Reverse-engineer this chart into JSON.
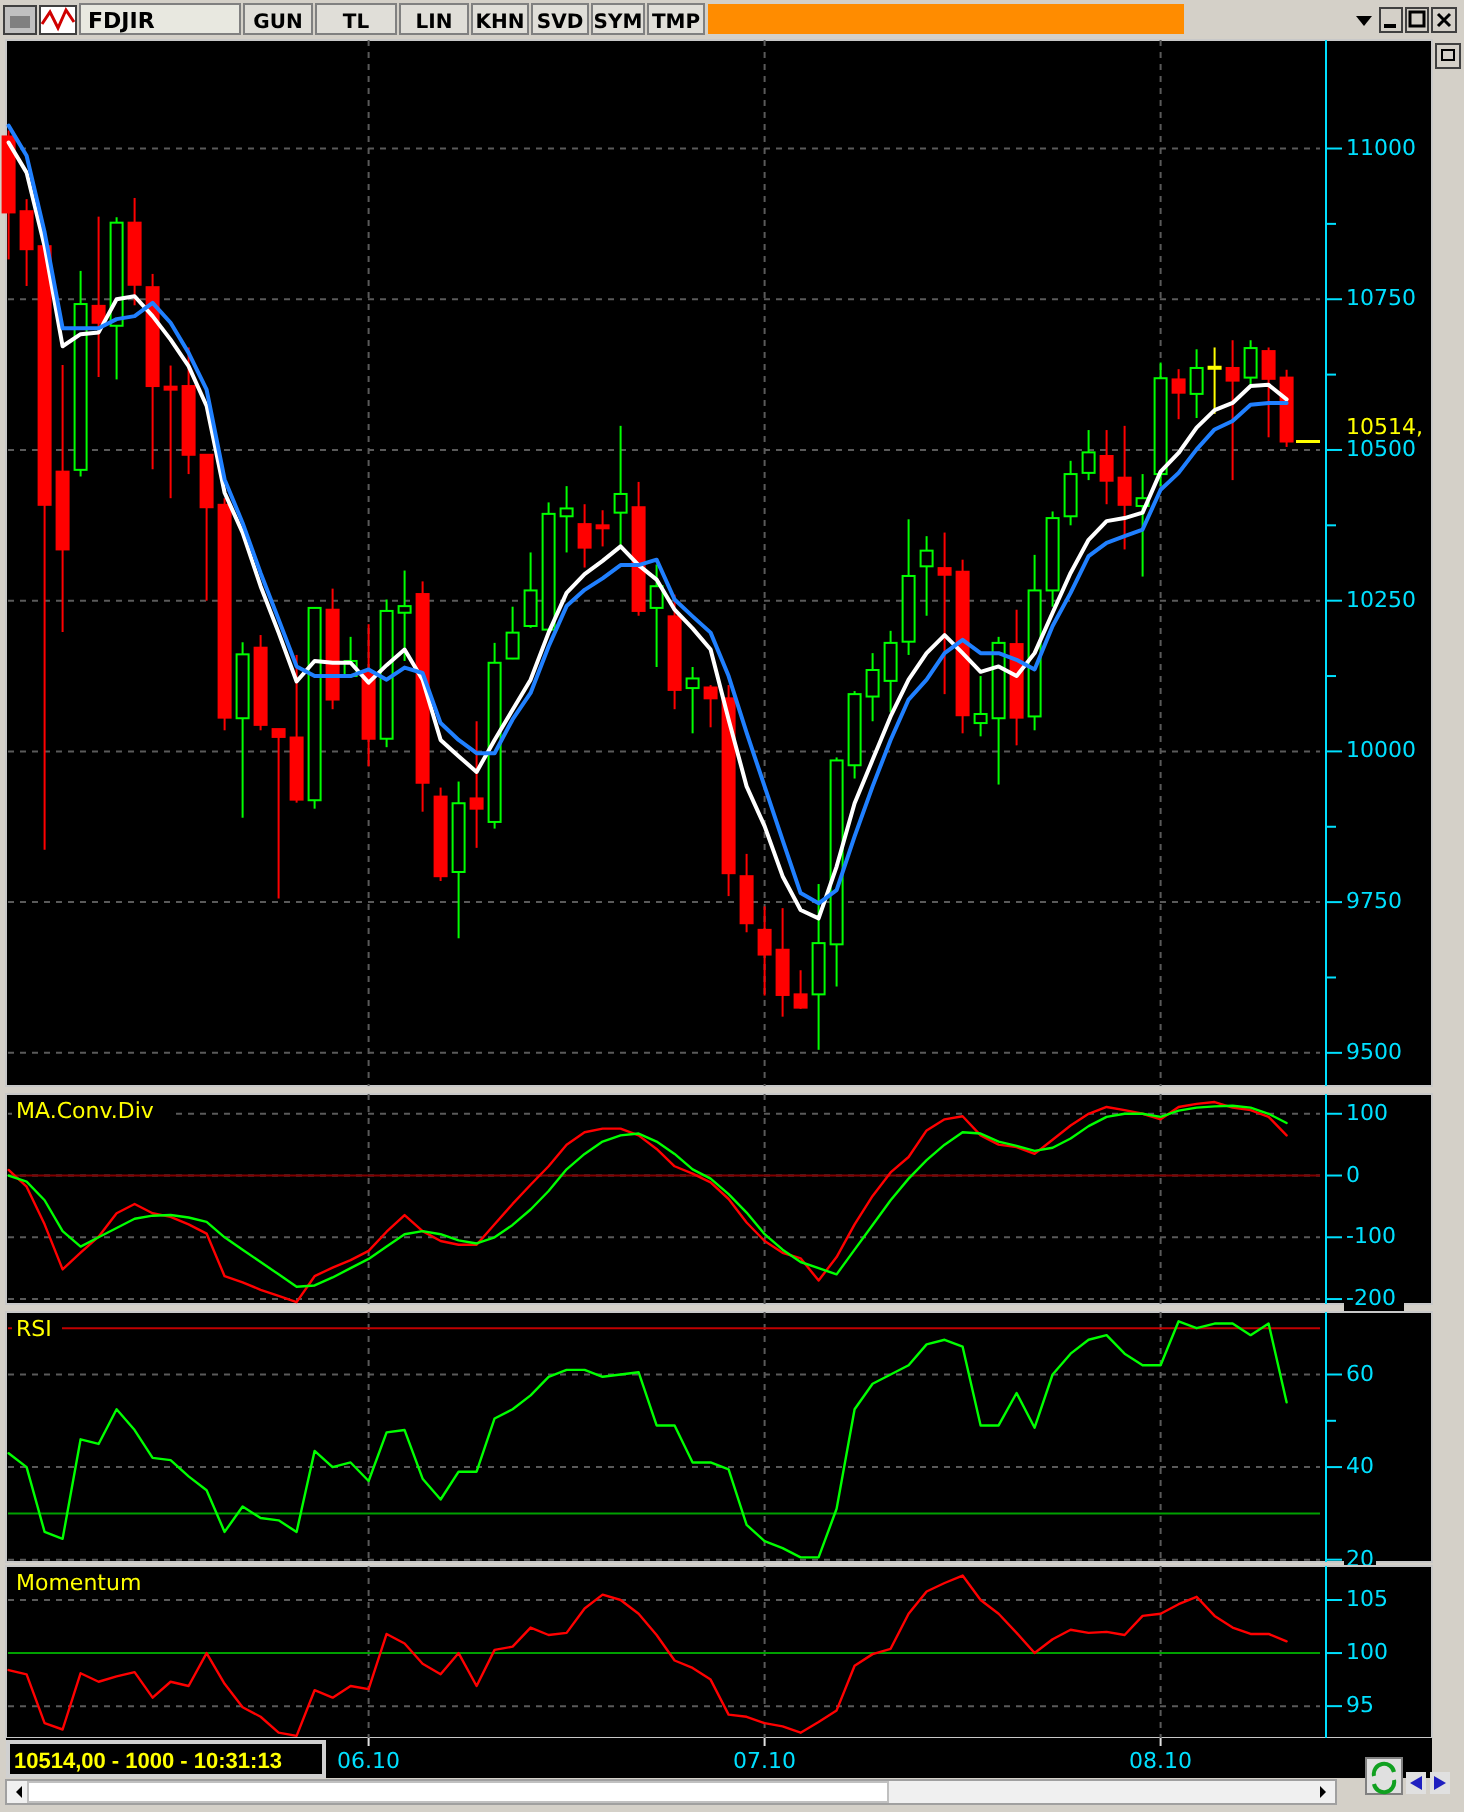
{
  "chart_data": [
    {
      "type": "candlestick",
      "title": "FDJIR",
      "annotations": [
        "GUN",
        "TL",
        "LIN",
        "KHN",
        "SVD",
        "SYM",
        "TMP"
      ],
      "categories": [
        null,
        null,
        null,
        null,
        null,
        null,
        null,
        null,
        null,
        null,
        null,
        null,
        null,
        null,
        null,
        null,
        null,
        null,
        null,
        null,
        "06.10",
        null,
        null,
        null,
        null,
        null,
        null,
        null,
        null,
        null,
        null,
        null,
        null,
        null,
        null,
        null,
        null,
        null,
        null,
        null,
        null,
        null,
        "07.10",
        null,
        null,
        null,
        null,
        null,
        null,
        null,
        null,
        null,
        null,
        null,
        null,
        null,
        null,
        null,
        null,
        null,
        null,
        null,
        null,
        null,
        "08.10",
        null,
        null,
        null,
        null,
        null,
        null,
        null
      ],
      "ohlc": [
        [
          11020,
          11030,
          10816,
          10894
        ],
        [
          10896,
          10916,
          10772,
          10833
        ],
        [
          10838,
          10838,
          9837,
          10409
        ],
        [
          10464,
          10641,
          10198,
          10335
        ],
        [
          10467,
          10797,
          10456,
          10742
        ],
        [
          10739,
          10887,
          10621,
          10711
        ],
        [
          10706,
          10886,
          10617,
          10877
        ],
        [
          10877,
          10918,
          10740,
          10774
        ],
        [
          10770,
          10792,
          10468,
          10606
        ],
        [
          10605,
          10640,
          10420,
          10600
        ],
        [
          10606,
          10670,
          10460,
          10492
        ],
        [
          10492,
          10492,
          10250,
          10405
        ],
        [
          10409,
          10420,
          10035,
          10056
        ],
        [
          10055,
          10181,
          9890,
          10161
        ],
        [
          10172,
          10193,
          10035,
          10044
        ],
        [
          10037,
          10037,
          9756,
          10024
        ],
        [
          10023,
          10160,
          9915,
          9920
        ],
        [
          9919,
          10238,
          9905,
          10238
        ],
        [
          10235,
          10270,
          10070,
          10086
        ],
        [
          10125,
          10190,
          10123,
          10150
        ],
        [
          10130,
          10211,
          9975,
          10021
        ],
        [
          10021,
          10252,
          10007,
          10233
        ],
        [
          10230,
          10300,
          10150,
          10241
        ],
        [
          10261,
          10282,
          9900,
          9948
        ],
        [
          9925,
          9940,
          9785,
          9793
        ],
        [
          9800,
          9950,
          9690,
          9914
        ],
        [
          9922,
          10050,
          9840,
          9905
        ],
        [
          9883,
          10180,
          9872,
          10147
        ],
        [
          10154,
          10240,
          10153,
          10197
        ],
        [
          10208,
          10330,
          10205,
          10267
        ],
        [
          10202,
          10413,
          10195,
          10394
        ],
        [
          10390,
          10440,
          10330,
          10403
        ],
        [
          10377,
          10410,
          10305,
          10338
        ],
        [
          10375,
          10400,
          10340,
          10370
        ],
        [
          10396,
          10540,
          10340,
          10427
        ],
        [
          10405,
          10447,
          10225,
          10233
        ],
        [
          10238,
          10310,
          10140,
          10274
        ],
        [
          10224,
          10260,
          10070,
          10102
        ],
        [
          10105,
          10140,
          10030,
          10121
        ],
        [
          10106,
          10110,
          10040,
          10088
        ],
        [
          10088,
          10110,
          9760,
          9798
        ],
        [
          9793,
          9830,
          9700,
          9715
        ],
        [
          9704,
          9743,
          9595,
          9663
        ],
        [
          9671,
          9740,
          9560,
          9596
        ],
        [
          9597,
          9637,
          9573,
          9575
        ],
        [
          9597,
          9780,
          9505,
          9682
        ],
        [
          9680,
          9990,
          9610,
          9985
        ],
        [
          9977,
          10100,
          9955,
          10095
        ],
        [
          10091,
          10163,
          10050,
          10135
        ],
        [
          10117,
          10200,
          10065,
          10180
        ],
        [
          10182,
          10385,
          10160,
          10291
        ],
        [
          10307,
          10357,
          10225,
          10333
        ],
        [
          10304,
          10363,
          10095,
          10293
        ],
        [
          10298,
          10318,
          10030,
          10060
        ],
        [
          10047,
          10125,
          10025,
          10062
        ],
        [
          10055,
          10190,
          9945,
          10180
        ],
        [
          10178,
          10235,
          10010,
          10056
        ],
        [
          10058,
          10326,
          10035,
          10267
        ],
        [
          10267,
          10398,
          10240,
          10387
        ],
        [
          10390,
          10482,
          10375,
          10460
        ],
        [
          10462,
          10533,
          10450,
          10496
        ],
        [
          10490,
          10533,
          10410,
          10449
        ],
        [
          10454,
          10540,
          10335,
          10409
        ],
        [
          10407,
          10460,
          10290,
          10420
        ],
        [
          10460,
          10645,
          10440,
          10619
        ],
        [
          10617,
          10634,
          10551,
          10595
        ],
        [
          10593,
          10667,
          10553,
          10636
        ],
        [
          10638,
          10670,
          10560,
          10638
        ],
        [
          10636,
          10682,
          10450,
          10615
        ],
        [
          10620,
          10682,
          10605,
          10669
        ],
        [
          10664,
          10670,
          10521,
          10618
        ],
        [
          10620,
          10633,
          10505,
          10514
        ]
      ],
      "colors": [
        "#ff0000",
        "#ff0000",
        "#ff0000",
        "#ff0000",
        "#00ff00",
        "#ff0000",
        "#00ff00",
        "#ff0000",
        "#ff0000",
        "#ff0000",
        "#ff0000",
        "#ff0000",
        "#ff0000",
        "#00ff00",
        "#ff0000",
        "#ff0000",
        "#ff0000",
        "#00ff00",
        "#ff0000",
        "#00ff00",
        "#ff0000",
        "#00ff00",
        "#00ff00",
        "#ff0000",
        "#ff0000",
        "#00ff00",
        "#ff0000",
        "#00ff00",
        "#00ff00",
        "#00ff00",
        "#00ff00",
        "#00ff00",
        "#ff0000",
        "#ff0000",
        "#00ff00",
        "#ff0000",
        "#00ff00",
        "#ff0000",
        "#00ff00",
        "#ff0000",
        "#ff0000",
        "#ff0000",
        "#ff0000",
        "#ff0000",
        "#ff0000",
        "#00ff00",
        "#00ff00",
        "#00ff00",
        "#00ff00",
        "#00ff00",
        "#00ff00",
        "#00ff00",
        "#ff0000",
        "#ff0000",
        "#00ff00",
        "#00ff00",
        "#ff0000",
        "#00ff00",
        "#00ff00",
        "#00ff00",
        "#00ff00",
        "#ff0000",
        "#ff0000",
        "#00ff00",
        "#00ff00",
        "#ff0000",
        "#00ff00",
        "#ffff00",
        "#ff0000",
        "#00ff00",
        "#ff0000",
        "#ff0000"
      ],
      "series": [
        {
          "type": "line",
          "color": "#ffffff",
          "values": [
            11010,
            10960,
            10838,
            10672,
            10692,
            10695,
            10750,
            10755,
            10722,
            10683,
            10639,
            10573,
            10429,
            10363,
            10274,
            10197,
            10116,
            10150,
            10147,
            10147,
            10114,
            10143,
            10169,
            10119,
            10019,
            9992,
            9966,
            10019,
            10069,
            10119,
            10197,
            10263,
            10294,
            10316,
            10340,
            10309,
            10285,
            10235,
            10204,
            10169,
            10053,
            9942,
            9876,
            9793,
            9737,
            9723,
            9809,
            9914,
            9986,
            10058,
            10119,
            10163,
            10193,
            10163,
            10132,
            10141,
            10125,
            10163,
            10230,
            10296,
            10351,
            10382,
            10387,
            10396,
            10464,
            10495,
            10537,
            10566,
            10578,
            10606,
            10608,
            10584
          ]
        },
        {
          "type": "line",
          "color": "#2080ff",
          "values": [
            11038,
            10988,
            10861,
            10702,
            10702,
            10702,
            10717,
            10722,
            10744,
            10711,
            10661,
            10600,
            10451,
            10379,
            10296,
            10219,
            10141,
            10125,
            10125,
            10125,
            10136,
            10119,
            10139,
            10130,
            10047,
            10019,
            9997,
            9997,
            10053,
            10097,
            10174,
            10241,
            10268,
            10287,
            10309,
            10309,
            10318,
            10252,
            10224,
            10197,
            10125,
            10031,
            9942,
            9853,
            9765,
            9748,
            9770,
            9859,
            9942,
            10019,
            10086,
            10119,
            10163,
            10185,
            10163,
            10163,
            10152,
            10136,
            10208,
            10263,
            10324,
            10346,
            10357,
            10368,
            10434,
            10462,
            10501,
            10534,
            10548,
            10575,
            10578,
            10578
          ]
        }
      ],
      "ylim": [
        9445,
        11180
      ],
      "yticks": [
        9500,
        {
          "value": 9625,
          "label": null
        },
        9750,
        {
          "value": 9875,
          "label": null
        },
        10000,
        {
          "value": 10125,
          "label": null
        },
        10250,
        {
          "value": 10375,
          "label": null
        },
        10500,
        {
          "value": 10625,
          "label": null
        },
        10750,
        {
          "value": 10875,
          "label": null
        },
        11000
      ],
      "grid": true,
      "tick_labels": "y",
      "ref_lines": [
        {
          "axis": "y",
          "value": 10514,
          "label": "10514,",
          "color": "#ffff00"
        }
      ]
    },
    {
      "type": "line",
      "title": "MA.Conv.Div",
      "categories": [
        null,
        null,
        null,
        null,
        null,
        null,
        null,
        null,
        null,
        null,
        null,
        null,
        null,
        null,
        null,
        null,
        null,
        null,
        null,
        null,
        "06.10",
        null,
        null,
        null,
        null,
        null,
        null,
        null,
        null,
        null,
        null,
        null,
        null,
        null,
        null,
        null,
        null,
        null,
        null,
        null,
        null,
        null,
        "07.10",
        null,
        null,
        null,
        null,
        null,
        null,
        null,
        null,
        null,
        null,
        null,
        null,
        null,
        null,
        null,
        null,
        null,
        null,
        null,
        null,
        null,
        "08.10",
        null,
        null,
        null,
        null,
        null,
        null,
        null
      ],
      "series": [
        {
          "color": "#ff0000",
          "values": [
            9,
            -18,
            -79,
            -152,
            -125,
            -99,
            -61,
            -46,
            -61,
            -67,
            -79,
            -94,
            -163,
            -173,
            -185,
            -195,
            -205,
            -163,
            -149,
            -137,
            -122,
            -91,
            -64,
            -90,
            -106,
            -112,
            -112,
            -79,
            -46,
            -15,
            15,
            50,
            70,
            76,
            76,
            65,
            43,
            15,
            3,
            -11,
            -38,
            -76,
            -106,
            -125,
            -134,
            -170,
            -132,
            -79,
            -33,
            5,
            30,
            73,
            91,
            96,
            65,
            50,
            46,
            35,
            58,
            81,
            100,
            111,
            106,
            100,
            91,
            111,
            116,
            119,
            110,
            106,
            95,
            65
          ]
        },
        {
          "color": "#00ff00",
          "values": [
            0,
            -10,
            -40,
            -90,
            -115,
            -100,
            -85,
            -70,
            -65,
            -64,
            -68,
            -75,
            -100,
            -120,
            -140,
            -160,
            -180,
            -178,
            -165,
            -150,
            -135,
            -115,
            -95,
            -90,
            -95,
            -105,
            -110,
            -100,
            -80,
            -55,
            -25,
            10,
            35,
            55,
            65,
            68,
            55,
            35,
            10,
            -5,
            -30,
            -60,
            -95,
            -120,
            -140,
            -150,
            -160,
            -120,
            -80,
            -40,
            -5,
            25,
            50,
            70,
            68,
            55,
            48,
            40,
            45,
            60,
            80,
            95,
            100,
            100,
            95,
            105,
            110,
            112,
            113,
            110,
            100,
            85
          ]
        }
      ],
      "ylim": [
        -208,
        132
      ],
      "yticks": [
        -200,
        -100,
        0,
        100
      ],
      "grid": true,
      "tick_labels": "y",
      "ref_lines": [
        {
          "axis": "y",
          "value": 0,
          "color": "#800000"
        }
      ]
    },
    {
      "type": "line",
      "title": "RSI",
      "categories": [
        null,
        null,
        null,
        null,
        null,
        null,
        null,
        null,
        null,
        null,
        null,
        null,
        null,
        null,
        null,
        null,
        null,
        null,
        null,
        null,
        "06.10",
        null,
        null,
        null,
        null,
        null,
        null,
        null,
        null,
        null,
        null,
        null,
        null,
        null,
        null,
        null,
        null,
        null,
        null,
        null,
        null,
        null,
        "07.10",
        null,
        null,
        null,
        null,
        null,
        null,
        null,
        null,
        null,
        null,
        null,
        null,
        null,
        null,
        null,
        null,
        null,
        null,
        null,
        null,
        null,
        "08.10",
        null,
        null,
        null,
        null,
        null,
        null,
        null
      ],
      "series": [
        {
          "color": "#00ff00",
          "values": [
            43,
            40,
            26,
            24.5,
            46,
            45,
            52.5,
            48,
            42,
            41.5,
            38,
            35,
            26,
            31.5,
            29,
            28.5,
            26,
            43.5,
            40,
            41,
            37,
            47.5,
            48,
            37.5,
            33,
            39,
            39,
            50.5,
            52.5,
            55.5,
            59.5,
            61,
            61,
            59.5,
            60,
            60.5,
            49,
            49,
            41,
            41,
            39.5,
            27.5,
            24,
            22.5,
            20.5,
            20.5,
            31,
            52.5,
            58,
            60,
            62,
            66.5,
            67.5,
            66,
            49,
            49,
            56,
            48.5,
            60,
            64.5,
            67.5,
            68.5,
            64.5,
            62,
            62,
            71.5,
            70,
            71,
            71,
            68.5,
            71,
            54
          ]
        }
      ],
      "ylim": [
        19.5,
        73.5
      ],
      "yticks": [
        20,
        40,
        {
          "value": 50,
          "label": null
        },
        60
      ],
      "grid": true,
      "tick_labels": "y",
      "ref_lines": [
        {
          "axis": "y",
          "value": 70,
          "color": "#c00000"
        },
        {
          "axis": "y",
          "value": 30,
          "color": "#00a000"
        }
      ]
    },
    {
      "type": "line",
      "title": "Momentum",
      "annotations": [
        "10514,00 - 1000 - 10:31:13"
      ],
      "categories": [
        null,
        null,
        null,
        null,
        null,
        null,
        null,
        null,
        null,
        null,
        null,
        null,
        null,
        null,
        null,
        null,
        null,
        null,
        null,
        null,
        "06.10",
        null,
        null,
        null,
        null,
        null,
        null,
        null,
        null,
        null,
        null,
        null,
        null,
        null,
        null,
        null,
        null,
        null,
        null,
        null,
        null,
        null,
        "07.10",
        null,
        null,
        null,
        null,
        null,
        null,
        null,
        null,
        null,
        null,
        null,
        null,
        null,
        null,
        null,
        null,
        null,
        null,
        null,
        null,
        null,
        "08.10",
        null,
        null,
        null,
        null,
        null,
        null,
        null
      ],
      "series": [
        {
          "color": "#ff0000",
          "values": [
            98.4,
            98,
            93.4,
            92.8,
            98.1,
            97.3,
            97.8,
            98.2,
            95.8,
            97.3,
            96.9,
            100,
            97.1,
            94.9,
            94,
            92.5,
            92.2,
            96.5,
            95.8,
            96.9,
            96.6,
            101.8,
            100.9,
            99,
            98,
            100,
            96.9,
            100.3,
            100.6,
            102.4,
            101.7,
            101.9,
            104.2,
            105.5,
            105,
            103.7,
            101.7,
            99.3,
            98.6,
            97.5,
            94.2,
            94,
            93.4,
            93.1,
            92.5,
            93.5,
            94.6,
            98.8,
            99.9,
            100.4,
            103.7,
            105.8,
            106.6,
            107.3,
            105,
            103.7,
            101.9,
            100,
            101.3,
            102.2,
            101.9,
            102,
            101.7,
            103.5,
            103.7,
            104.6,
            105.3,
            103.5,
            102.4,
            101.8,
            101.8,
            101.1
          ]
        }
      ],
      "ylim": [
        92,
        108.2
      ],
      "yticks": [
        95,
        100,
        105
      ],
      "grid": true,
      "ref_lines": [
        {
          "axis": "y",
          "value": 100,
          "color": "#00a000"
        }
      ]
    }
  ]
}
